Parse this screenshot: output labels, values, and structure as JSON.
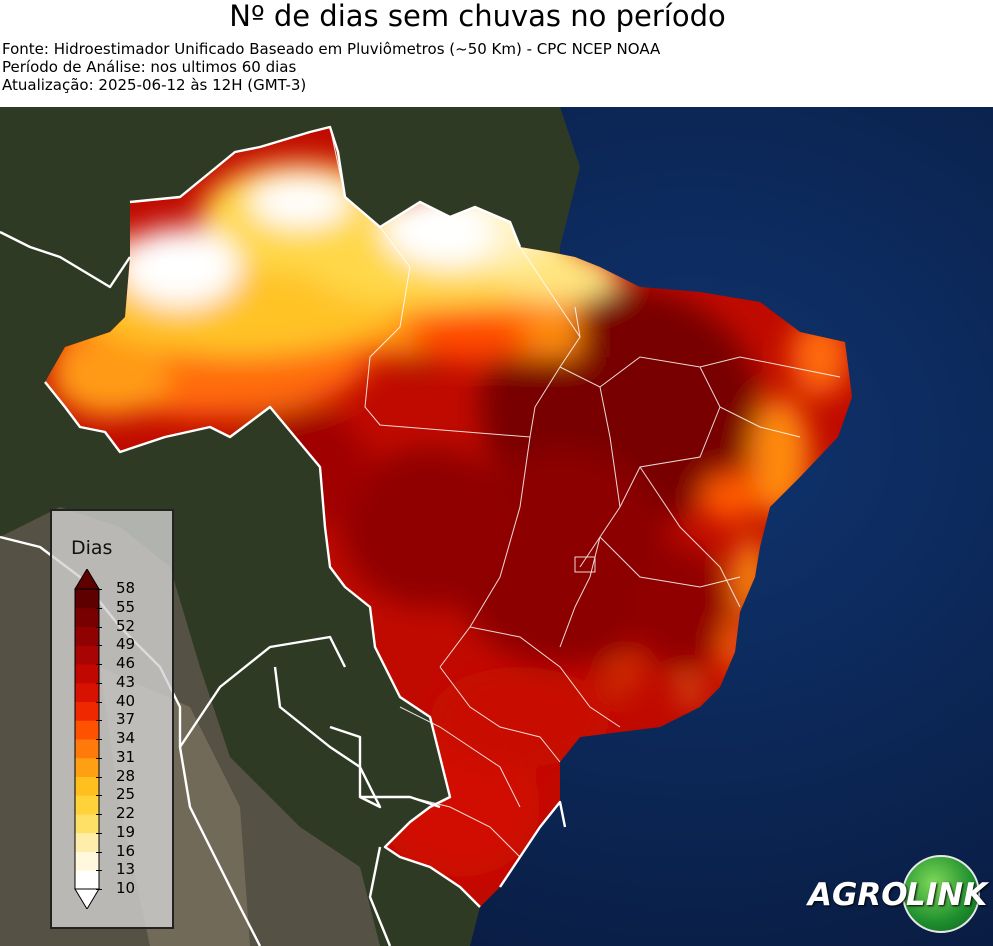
{
  "header": {
    "title": "Nº de dias sem chuvas no período",
    "source": "Fonte: Hidroestimador Unificado Baseado em Pluviômetros (~50 Km) - CPC NCEP NOAA",
    "period": "Período de Análise: nos ultimos 60 dias",
    "updated": "Atualização: 2025-06-12 às 12H (GMT-3)"
  },
  "legend": {
    "title": "Dias",
    "ticks": [
      "58",
      "55",
      "52",
      "49",
      "46",
      "43",
      "40",
      "37",
      "34",
      "31",
      "28",
      "25",
      "22",
      "19",
      "16",
      "13",
      "10"
    ],
    "colors": [
      "#ffffff",
      "#fff8dc",
      "#ffeeaa",
      "#ffe066",
      "#ffd23a",
      "#ffbf1f",
      "#ffa014",
      "#ff7a0a",
      "#ff5200",
      "#f02800",
      "#d81200",
      "#c00800",
      "#a80404",
      "#900202",
      "#780000",
      "#5e0000"
    ],
    "extend": "both"
  },
  "map": {
    "ocean_color": "#0d2a5c",
    "land_color": "#2e3a22",
    "border_color": "#ffffff"
  },
  "logo": {
    "part1": "AGRO",
    "part2": "LINK"
  }
}
